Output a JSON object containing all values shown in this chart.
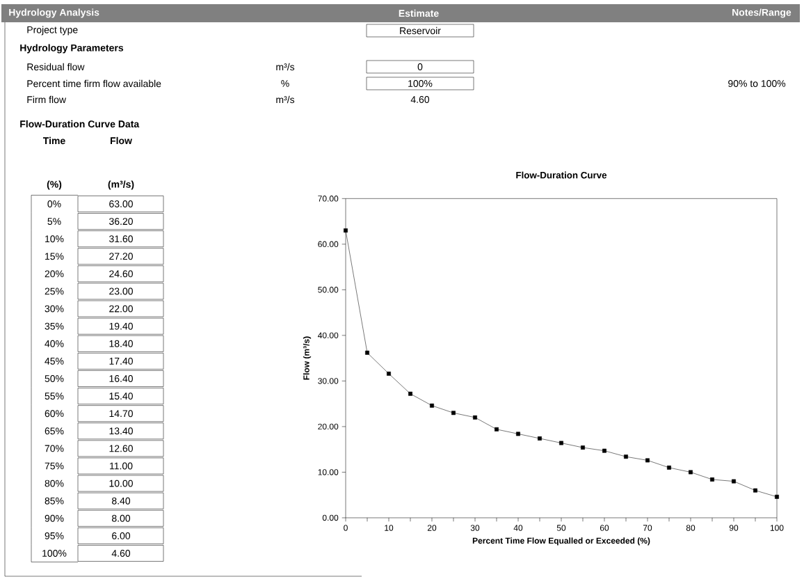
{
  "chart_data": {
    "type": "line",
    "title": "Flow-Duration Curve",
    "xlabel": "Percent Time Flow Equalled or Exceeded (%)",
    "ylabel": "Flow (m³/s)",
    "x": [
      0,
      5,
      10,
      15,
      20,
      25,
      30,
      35,
      40,
      45,
      50,
      55,
      60,
      65,
      70,
      75,
      80,
      85,
      90,
      95,
      100
    ],
    "series": [
      {
        "color": "#000000",
        "values": [
          63,
          36.2,
          31.6,
          27.2,
          24.6,
          23,
          22,
          19.4,
          18.4,
          17.4,
          16.4,
          15.4,
          14.7,
          13.4,
          12.6,
          11,
          10,
          8.4,
          8,
          6,
          4.6
        ]
      }
    ],
    "marker": "square",
    "line_style": "solid",
    "xlim": [
      0,
      100
    ],
    "xticks": [
      0,
      {
        "value": 5,
        "label": null
      },
      10,
      {
        "value": 15,
        "label": null
      },
      20,
      {
        "value": 25,
        "label": null
      },
      30,
      {
        "value": 35,
        "label": null
      },
      40,
      {
        "value": 45,
        "label": null
      },
      50,
      {
        "value": 55,
        "label": null
      },
      60,
      {
        "value": 65,
        "label": null
      },
      70,
      {
        "value": 75,
        "label": null
      },
      80,
      {
        "value": 85,
        "label": null
      },
      90,
      {
        "value": 95,
        "label": null
      },
      100
    ],
    "ylim": [
      0,
      70
    ],
    "yticks": [
      {
        "value": 0,
        "label": "0.00"
      },
      {
        "value": 10,
        "label": "10.00"
      },
      {
        "value": 20,
        "label": "20.00"
      },
      {
        "value": 30,
        "label": "30.00"
      },
      {
        "value": 40,
        "label": "40.00"
      },
      {
        "value": 50,
        "label": "50.00"
      },
      {
        "value": 60,
        "label": "60.00"
      },
      {
        "value": 70,
        "label": "70.00"
      }
    ],
    "annotations": [
      "Hydrology Analysis",
      "Estimate",
      "Notes/Range",
      "Project type",
      "Reservoir",
      "Hydrology Parameters",
      "Residual flow",
      "m³/s",
      "0",
      "Percent time firm flow available",
      "%",
      "100%",
      "90% to 100%",
      "Firm flow",
      "m³/s",
      "4.60",
      "Flow-Duration Curve Data",
      "Time",
      "Flow",
      "(%)",
      "(m³/s)",
      "0%",
      "63.00",
      "5%",
      "36.20",
      "10%",
      "31.60",
      "15%",
      "27.20",
      "20%",
      "24.60",
      "25%",
      "23.00",
      "30%",
      "22.00",
      "35%",
      "19.40",
      "40%",
      "18.40",
      "45%",
      "17.40",
      "50%",
      "16.40",
      "55%",
      "15.40",
      "60%",
      "14.70",
      "65%",
      "13.40",
      "70%",
      "12.60",
      "75%",
      "11.00",
      "80%",
      "10.00",
      "85%",
      "8.40",
      "90%",
      "8.00",
      "95%",
      "6.00",
      "100%",
      "4.60"
    ]
  }
}
